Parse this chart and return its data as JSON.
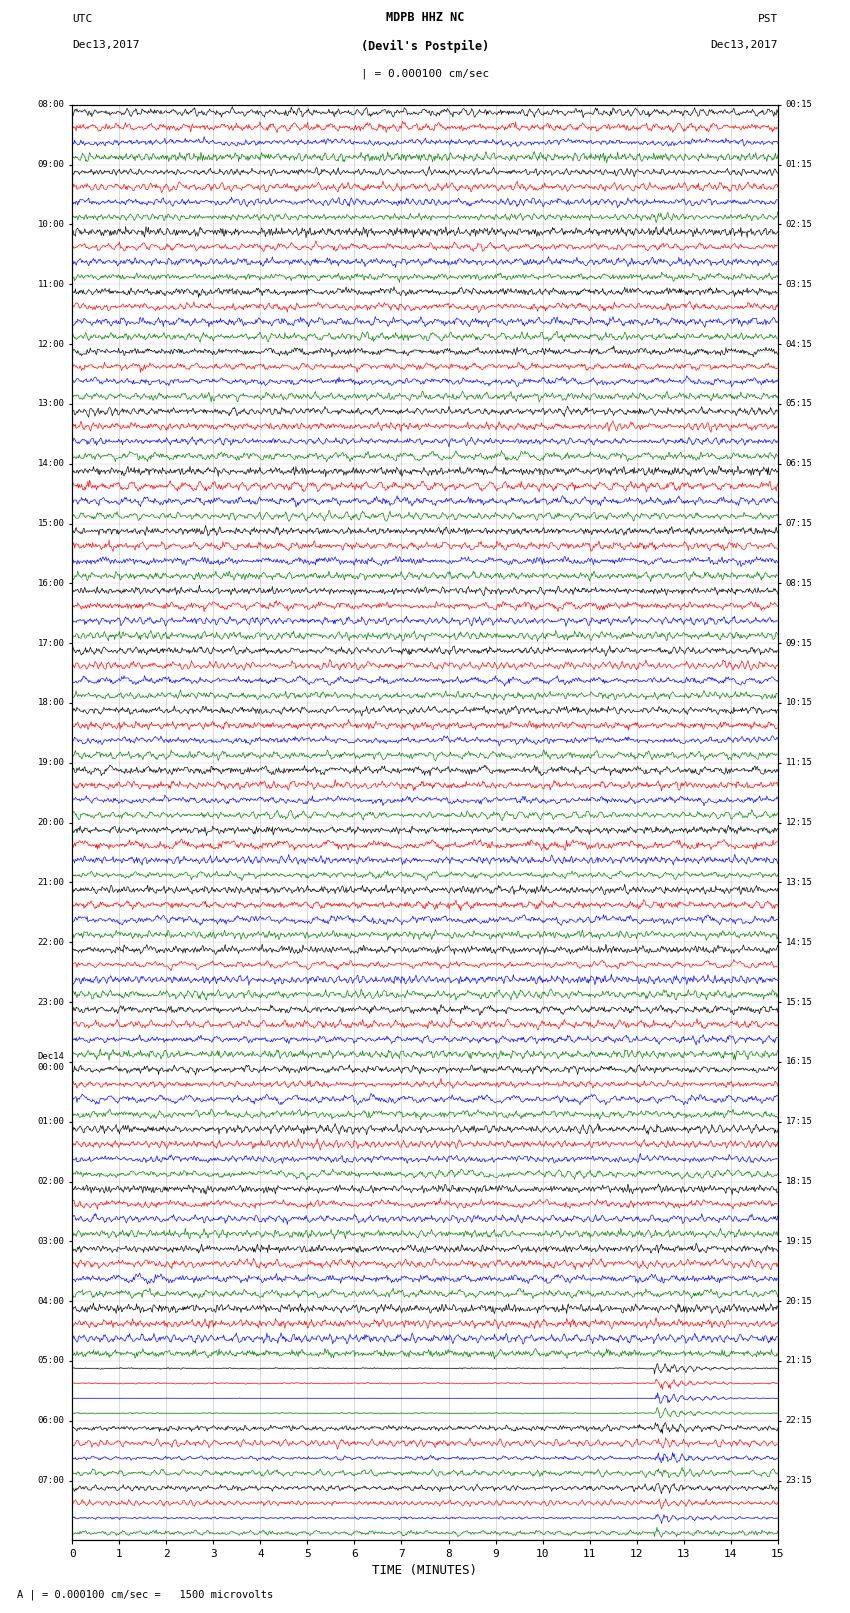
{
  "title_line1": "MDPB HHZ NC",
  "title_line2": "(Devil's Postpile)",
  "scale_label": "| = 0.000100 cm/sec",
  "left_date": "Dec13,2017",
  "right_date": "Dec13,2017",
  "left_tz": "UTC",
  "right_tz": "PST",
  "bottom_label": "TIME (MINUTES)",
  "bottom_note": "A | = 0.000100 cm/sec =   1500 microvolts",
  "x_ticks": [
    0,
    1,
    2,
    3,
    4,
    5,
    6,
    7,
    8,
    9,
    10,
    11,
    12,
    13,
    14,
    15
  ],
  "fig_width": 8.5,
  "fig_height": 16.13,
  "bg_color": "#ffffff",
  "trace_colors": [
    "#000000",
    "#ff0000",
    "#0000ff",
    "#008000"
  ],
  "n_hours": 24,
  "minutes_per_row": 15,
  "utc_labels": [
    "08:00",
    "09:00",
    "10:00",
    "11:00",
    "12:00",
    "13:00",
    "14:00",
    "15:00",
    "16:00",
    "17:00",
    "18:00",
    "19:00",
    "20:00",
    "21:00",
    "22:00",
    "23:00",
    "Dec14\n00:00",
    "01:00",
    "02:00",
    "03:00",
    "04:00",
    "05:00",
    "06:00",
    "07:00"
  ],
  "pst_labels": [
    "00:15",
    "01:15",
    "02:15",
    "03:15",
    "04:15",
    "05:15",
    "06:15",
    "07:15",
    "08:15",
    "09:15",
    "10:15",
    "11:15",
    "12:15",
    "13:15",
    "14:15",
    "15:15",
    "16:15",
    "17:15",
    "18:15",
    "19:15",
    "20:15",
    "21:15",
    "22:15",
    "23:15"
  ],
  "grid_color": "#999999",
  "grid_alpha": 0.5,
  "line_width": 0.45
}
